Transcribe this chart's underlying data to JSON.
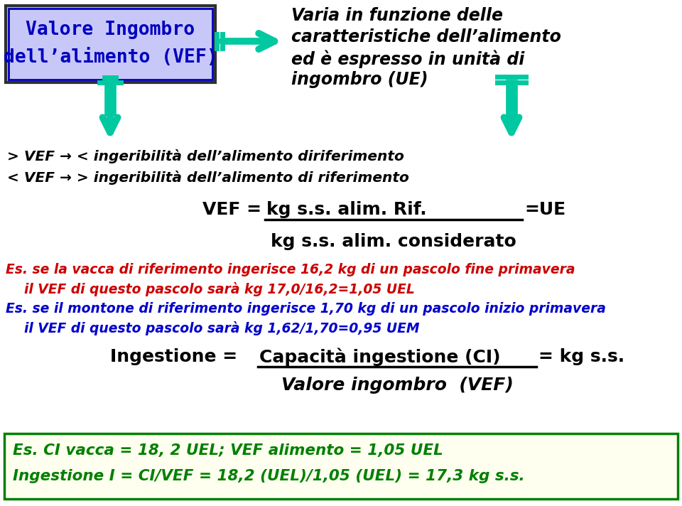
{
  "bg_color": "#ffffff",
  "fig_width": 9.6,
  "fig_height": 7.12,
  "box1_text_line1": "Valore Ingombro",
  "box1_text_line2": "dell’alimento (VEF)",
  "box1_bg": "#c8c8f8",
  "box1_border": "#404040",
  "right_text_line1": "Varia in funzione delle",
  "right_text_line2": "caratteristiche dell’alimento",
  "right_text_line3": "ed è espresso in unità di",
  "right_text_line4": "ingombro (UE)",
  "arrow_color": "#00c8a0",
  "line1": "> VEF → < ingeribilità dell’alimento diriferimento",
  "line2": "< VEF → > ingeribilità dell’alimento di riferimento",
  "red_line1": "Es. se la vacca di riferimento ingerisce 16,2 kg di un pascolo fine primavera",
  "red_line2": "    il VEF di questo pascolo sarà kg 17,0/16,2=1,05 UEL",
  "blue_line1": "Es. se il montone di riferimento ingerisce 1,70 kg di un pascolo inizio primavera",
  "blue_line2": "    il VEF di questo pascolo sarà kg 1,62/1,70=0,95 UEM",
  "bottom_box_bg": "#fffff0",
  "bottom_box_border": "#008000",
  "bottom_line1": "Es. CI vacca = 18, 2 UEL; VEF alimento = 1,05 UEL",
  "bottom_line2": "Ingestione I = CI/VEF = 18,2 (UEL)/1,05 (UEL) = 17,3 kg s.s.",
  "bottom_text_color": "#008000"
}
